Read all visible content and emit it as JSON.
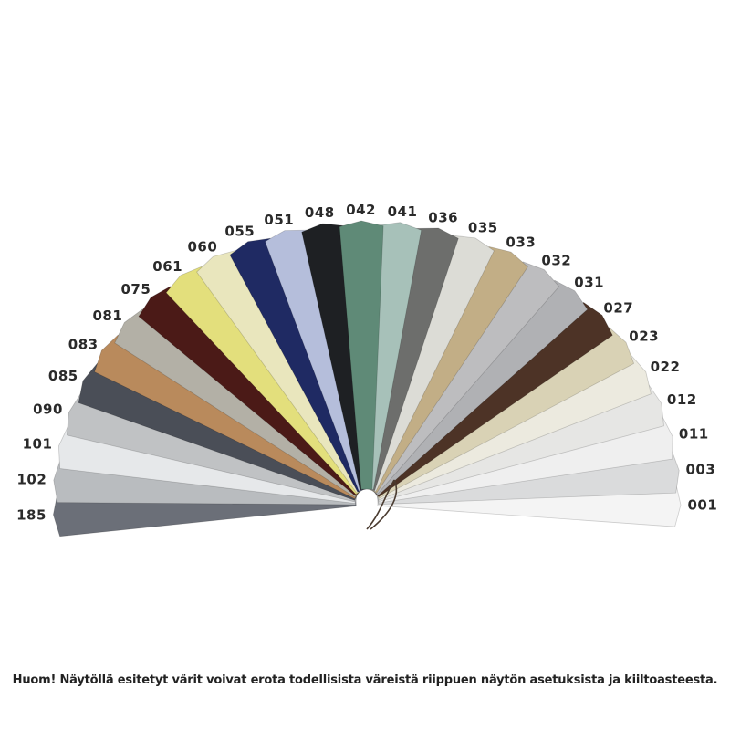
{
  "swatches": [
    {
      "code": "185",
      "color": "#6b6f78"
    },
    {
      "code": "102",
      "color": "#b9bcbf"
    },
    {
      "code": "101",
      "color": "#e6e8ea"
    },
    {
      "code": "090",
      "color": "#c0c2c4"
    },
    {
      "code": "085",
      "color": "#4a4e57"
    },
    {
      "code": "083",
      "color": "#b98a5c"
    },
    {
      "code": "081",
      "color": "#b3b0a6"
    },
    {
      "code": "075",
      "color": "#4b1a17"
    },
    {
      "code": "061",
      "color": "#e3df7c"
    },
    {
      "code": "060",
      "color": "#e9e6bd"
    },
    {
      "code": "055",
      "color": "#1f2a63"
    },
    {
      "code": "051",
      "color": "#b5bedb"
    },
    {
      "code": "048",
      "color": "#1e2023"
    },
    {
      "code": "042",
      "color": "#5f8a77"
    },
    {
      "code": "041",
      "color": "#a7c1b9"
    },
    {
      "code": "036",
      "color": "#6d6e6c"
    },
    {
      "code": "035",
      "color": "#dcdcd6"
    },
    {
      "code": "033",
      "color": "#c2ae86"
    },
    {
      "code": "032",
      "color": "#bdbdbf"
    },
    {
      "code": "031",
      "color": "#b0b1b4"
    },
    {
      "code": "027",
      "color": "#4d3326"
    },
    {
      "code": "023",
      "color": "#d9d2b5"
    },
    {
      "code": "022",
      "color": "#eceadf"
    },
    {
      "code": "012",
      "color": "#e6e6e4"
    },
    {
      "code": "011",
      "color": "#efefef"
    },
    {
      "code": "003",
      "color": "#dadbdc"
    },
    {
      "code": "001",
      "color": "#f4f4f4"
    }
  ],
  "caption": "Huom! Näytöllä esitetyt värit voivat erota todellisista väreistä riippuen näytön asetuksista ja kiiltoasteesta."
}
